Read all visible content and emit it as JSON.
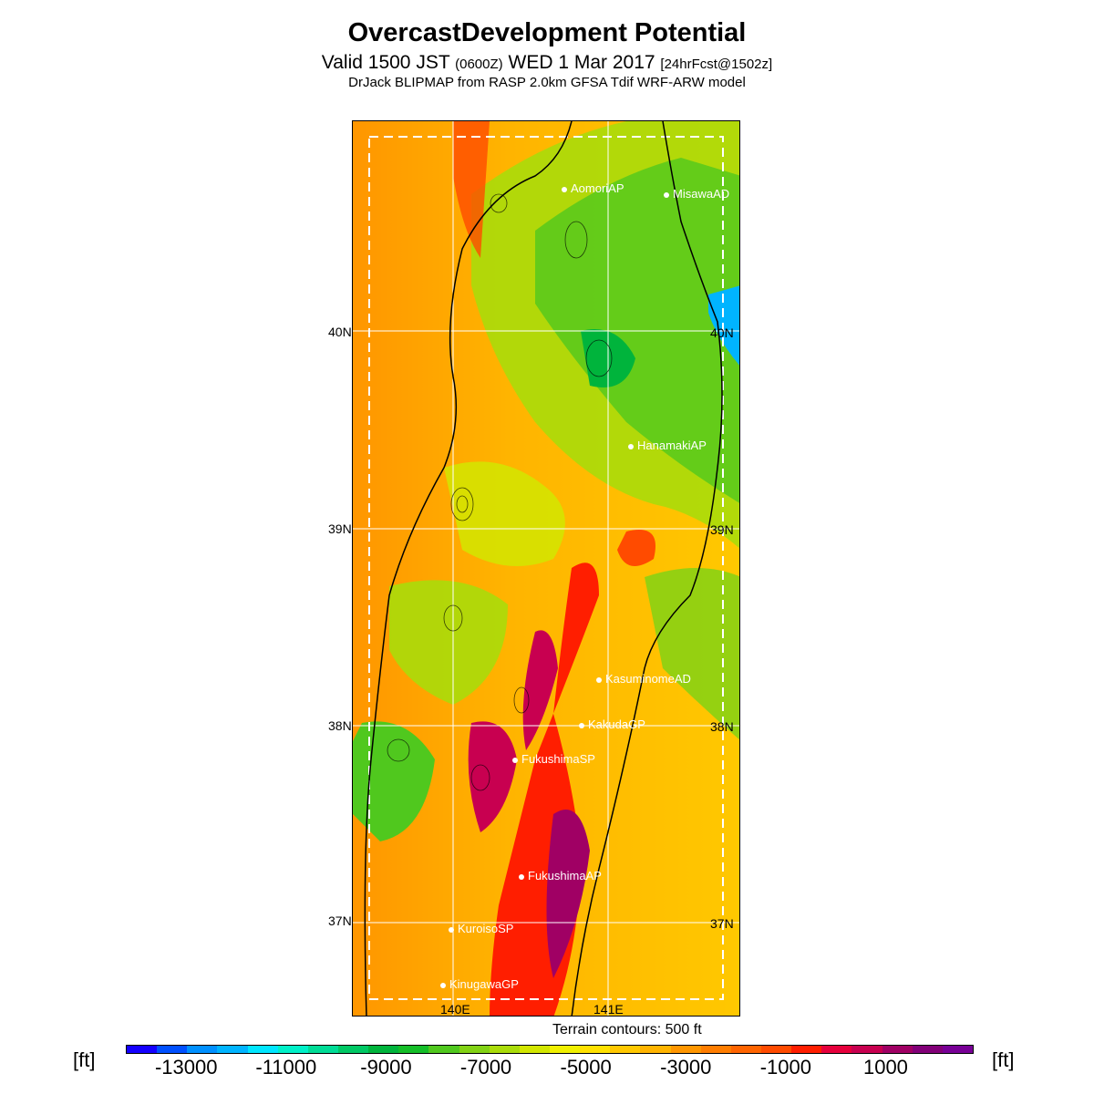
{
  "title": "OvercastDevelopment Potential",
  "subtitle": {
    "valid": "Valid 1500 JST",
    "zulu": "(0600Z)",
    "date": "WED 1 Mar 2017",
    "forecast": "[24hrFcst@1502z]"
  },
  "model_line": "DrJack BLIPMAP from RASP 2.0km GFSA Tdif WRF-ARW model",
  "map": {
    "lon_labels": [
      "140E",
      "141E"
    ],
    "lat_labels": [
      "40N",
      "39N",
      "38N",
      "37N"
    ],
    "cities": [
      "AomoriAP",
      "MisawaAD",
      "HanamakiAP",
      "KasuminomeAD",
      "KakudaGP",
      "FukushimaSP",
      "FukushimaAP",
      "KuroisoSP",
      "KinugawaGP"
    ]
  },
  "terrain_note": "Terrain contours: 500 ft",
  "colorbar": {
    "unit": "[ft]",
    "ticks": [
      "-13000",
      "-11000",
      "-9000",
      "-7000",
      "-5000",
      "-3000",
      "-1000",
      "1000"
    ],
    "colors": [
      "#1400ff",
      "#0050ff",
      "#0090ff",
      "#00b4ff",
      "#00e6ff",
      "#00f0c8",
      "#00dc96",
      "#00c864",
      "#00b43c",
      "#14be28",
      "#50c81e",
      "#82d214",
      "#aadc0a",
      "#d2e600",
      "#f0f000",
      "#ffe100",
      "#ffc800",
      "#ffb400",
      "#ff9600",
      "#ff7d00",
      "#ff6400",
      "#ff4b00",
      "#ff1e00",
      "#e6003c",
      "#c80050",
      "#a00064",
      "#820078",
      "#780096"
    ]
  }
}
